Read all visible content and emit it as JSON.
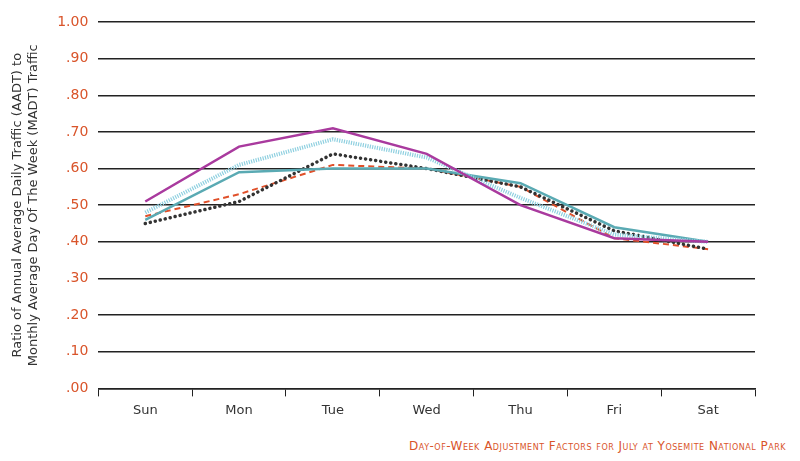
{
  "chart_data": {
    "type": "line",
    "title": "Day-of-Week Adjustment Factors for July at Yosemite National Park",
    "y_label": [
      "Ratio of Annual Average Daily Traffic (AADT) to",
      "Monthly Average Day Of The Week (MADT) Traffic"
    ],
    "categories": [
      "Sun",
      "Mon",
      "Tue",
      "Wed",
      "Thu",
      "Fri",
      "Sat"
    ],
    "series": [
      {
        "color": "#a93a9e",
        "line_style": "solid",
        "values": [
          0.51,
          0.66,
          0.71,
          0.64,
          0.5,
          0.41,
          0.4
        ]
      },
      {
        "color": "#8fd0e0",
        "line_style": "hatched",
        "values": [
          0.48,
          0.61,
          0.68,
          0.63,
          0.52,
          0.42,
          0.4
        ]
      },
      {
        "color": "#5aaab3",
        "line_style": "solid",
        "values": [
          0.46,
          0.59,
          0.6,
          0.6,
          0.56,
          0.44,
          0.4
        ]
      },
      {
        "color": "#333333",
        "line_style": "dotted",
        "values": [
          0.45,
          0.51,
          0.64,
          0.6,
          0.55,
          0.43,
          0.38
        ]
      },
      {
        "color": "#e0502a",
        "line_style": "dashed",
        "values": [
          0.47,
          0.53,
          0.61,
          0.6,
          0.55,
          0.41,
          0.38
        ]
      }
    ],
    "ylim": [
      0,
      1
    ],
    "yticks": [
      {
        "value": 0,
        "label": ".00"
      },
      {
        "value": 0.1,
        "label": ".10"
      },
      {
        "value": 0.2,
        "label": ".20"
      },
      {
        "value": 0.3,
        "label": ".30"
      },
      {
        "value": 0.4,
        "label": ".40"
      },
      {
        "value": 0.5,
        "label": ".50"
      },
      {
        "value": 0.6,
        "label": ".60"
      },
      {
        "value": 0.7,
        "label": ".70"
      },
      {
        "value": 0.8,
        "label": ".80"
      },
      {
        "value": 0.9,
        "label": ".90"
      },
      {
        "value": 1,
        "label": "1.00"
      }
    ],
    "grid": true,
    "legend": "none"
  }
}
